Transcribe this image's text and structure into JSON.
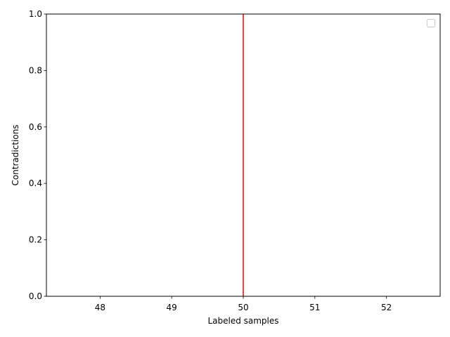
{
  "chart_data": {
    "type": "line",
    "title": "",
    "xlabel": "Labeled samples",
    "ylabel": "Contradictions",
    "xlim": [
      47.25,
      52.75
    ],
    "ylim": [
      0,
      1
    ],
    "x_ticks": [
      48,
      49,
      50,
      51,
      52
    ],
    "x_tick_labels": [
      "48",
      "49",
      "50",
      "51",
      "52"
    ],
    "y_ticks": [
      0,
      0.2,
      0.4,
      0.6,
      0.8,
      1.0
    ],
    "y_tick_labels": [
      "0.0",
      "0.2",
      "0.4",
      "0.6",
      "0.8",
      "1.0"
    ],
    "grid": false,
    "legend": {
      "placement": "top-right",
      "entries": []
    },
    "vlines": [
      {
        "x": 50,
        "color": "#ff0000"
      }
    ],
    "series": []
  }
}
